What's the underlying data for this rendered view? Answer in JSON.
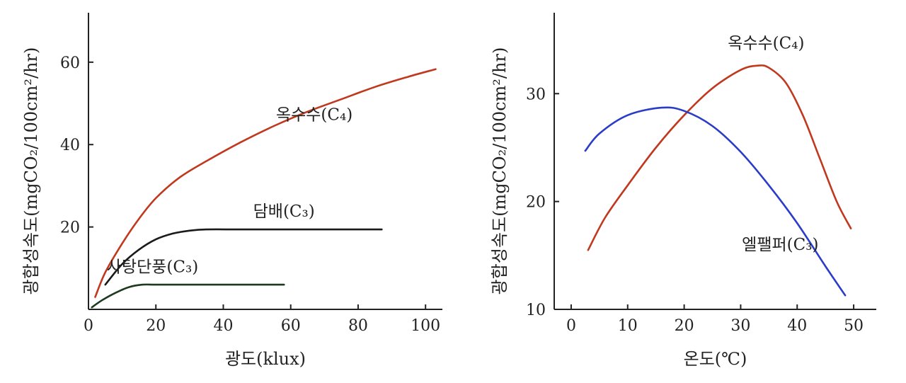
{
  "chart_data": [
    {
      "type": "line",
      "title": "",
      "xlabel": "광도(klux)",
      "ylabel": "광합성속도(mgCO₂/100cm²/hr)",
      "xlim": [
        0,
        105
      ],
      "ylim": [
        0,
        72
      ],
      "xticks": [
        0,
        20,
        40,
        60,
        80,
        100
      ],
      "yticks": [
        20,
        40,
        60
      ],
      "xtick_labels": [
        "0",
        "20",
        "40",
        "60",
        "80",
        "100"
      ],
      "ytick_labels": [
        "20",
        "40",
        "60"
      ],
      "grid": false,
      "series": [
        {
          "name": "옥수수(C₄)",
          "color": "#c0391e",
          "x": [
            2,
            5,
            10,
            15,
            20,
            27,
            35,
            45,
            55,
            65,
            75,
            85,
            95,
            103
          ],
          "y": [
            3,
            9,
            16,
            22,
            27,
            32,
            36,
            40.5,
            44.5,
            48,
            51,
            54,
            56.5,
            58.3
          ]
        },
        {
          "name": "담배(C₃)",
          "color": "#1a1a1a",
          "x": [
            5,
            10,
            15,
            20,
            25,
            30,
            35,
            45,
            60,
            75,
            87
          ],
          "y": [
            6,
            11,
            14.5,
            17,
            18.4,
            19.1,
            19.4,
            19.4,
            19.4,
            19.4,
            19.4
          ]
        },
        {
          "name": "사탕단풍(C₃)",
          "color": "#1e3a1e",
          "x": [
            1,
            4,
            8,
            12,
            16,
            20,
            30,
            45,
            58
          ],
          "y": [
            0.5,
            2.2,
            4,
            5.4,
            6,
            6,
            6,
            6,
            6
          ]
        }
      ],
      "labels": [
        {
          "text": "옥수수(C₄)",
          "x": 67,
          "y": 46
        },
        {
          "text": "담배(C₃)",
          "x": 58,
          "y": 22.5
        },
        {
          "text": "사탕단풍(C₃)",
          "x": 19,
          "y": 9
        }
      ]
    },
    {
      "type": "line",
      "title": "",
      "xlabel": "온도(℃)",
      "ylabel": "광합성속도(mgCO₂/100cm²/hr)",
      "xlim": [
        -3,
        54
      ],
      "ylim": [
        10,
        37.5
      ],
      "xticks": [
        0,
        10,
        20,
        30,
        40,
        50
      ],
      "yticks": [
        10,
        20,
        30
      ],
      "xtick_labels": [
        "0",
        "10",
        "20",
        "30",
        "40",
        "50"
      ],
      "ytick_labels": [
        "10",
        "20",
        "30"
      ],
      "grid": false,
      "series": [
        {
          "name": "옥수수(C₄)",
          "color": "#c0391e",
          "x": [
            3,
            6,
            10,
            15,
            20,
            25,
            30,
            33,
            35,
            38,
            41,
            44,
            47,
            49.5
          ],
          "y": [
            15.5,
            18.5,
            21.5,
            25,
            28,
            30.5,
            32.2,
            32.6,
            32.4,
            31,
            28,
            24,
            20,
            17.5
          ]
        },
        {
          "name": "엘팰퍼(C₃)",
          "color": "#2a3cc8",
          "x": [
            2.5,
            5,
            10,
            16,
            20,
            25,
            30,
            35,
            40,
            45,
            48.5
          ],
          "y": [
            24.7,
            26.3,
            28,
            28.7,
            28.4,
            27,
            24.6,
            21.5,
            18,
            14,
            11.3
          ]
        }
      ],
      "labels": [
        {
          "text": "옥수수(C₄)",
          "x": 34.5,
          "y": 34.2
        },
        {
          "text": "엘팰퍼(C₃)",
          "x": 37,
          "y": 15.5
        }
      ]
    }
  ]
}
